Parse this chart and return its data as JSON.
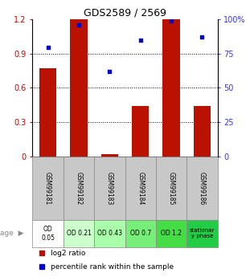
{
  "title": "GDS2589 / 2569",
  "samples": [
    "GSM99181",
    "GSM99182",
    "GSM99183",
    "GSM99184",
    "GSM99185",
    "GSM99186"
  ],
  "log2_ratio": [
    0.77,
    1.21,
    0.02,
    0.44,
    1.21,
    0.44
  ],
  "percentile_rank_pct": [
    79.5,
    96.0,
    62.0,
    85.0,
    99.0,
    87.0
  ],
  "bar_color": "#bb1100",
  "dot_color": "#0000cc",
  "ylim_left": [
    0,
    1.2
  ],
  "ylim_right": [
    0,
    100
  ],
  "yticks_left": [
    0,
    0.3,
    0.6,
    0.9,
    1.2
  ],
  "ytick_labels_left": [
    "0",
    "0.3",
    "0.6",
    "0.9",
    "1.2"
  ],
  "yticks_right": [
    0,
    25,
    50,
    75,
    100
  ],
  "ytick_labels_right": [
    "0",
    "25",
    "50",
    "75",
    "100%"
  ],
  "age_labels": [
    "OD\n0.05",
    "OD 0.21",
    "OD 0.43",
    "OD 0.7",
    "OD 1.2",
    "stationar\ny phase"
  ],
  "age_colors": [
    "#ffffff",
    "#ccffcc",
    "#aaffaa",
    "#77ee77",
    "#44dd44",
    "#22cc44"
  ],
  "legend_ratio_label": "log2 ratio",
  "legend_pct_label": "percentile rank within the sample",
  "xlabel_color_left": "#cc0000",
  "xlabel_color_right": "#3333ff",
  "grid_yticks": [
    0.3,
    0.6,
    0.9
  ],
  "bar_width": 0.55
}
